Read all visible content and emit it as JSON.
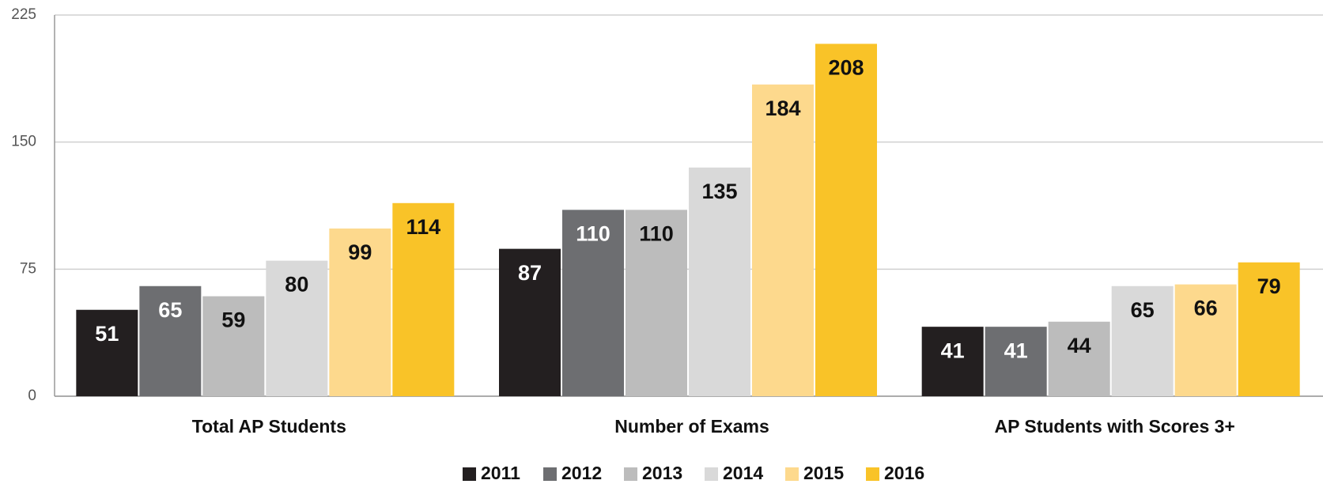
{
  "chart_data": {
    "type": "bar",
    "categories": [
      "Total AP Students",
      "Number of Exams",
      "AP Students with Scores 3+"
    ],
    "series": [
      {
        "name": "2011",
        "color": "#231f20",
        "label_color": "#ffffff",
        "values": [
          51,
          87,
          41
        ]
      },
      {
        "name": "2012",
        "color": "#6d6e71",
        "label_color": "#ffffff",
        "values": [
          65,
          110,
          41
        ]
      },
      {
        "name": "2013",
        "color": "#bcbcbc",
        "label_color": "#111111",
        "values": [
          59,
          110,
          44
        ]
      },
      {
        "name": "2014",
        "color": "#d9d9d9",
        "label_color": "#111111",
        "values": [
          80,
          135,
          65
        ]
      },
      {
        "name": "2015",
        "color": "#fdd98d",
        "label_color": "#111111",
        "values": [
          99,
          184,
          66
        ]
      },
      {
        "name": "2016",
        "color": "#f9c328",
        "label_color": "#111111",
        "values": [
          114,
          208,
          79
        ]
      }
    ],
    "ylim": [
      0,
      225
    ],
    "yticks": [
      0,
      75,
      150,
      225
    ],
    "grid": true,
    "legend": "bottom"
  }
}
